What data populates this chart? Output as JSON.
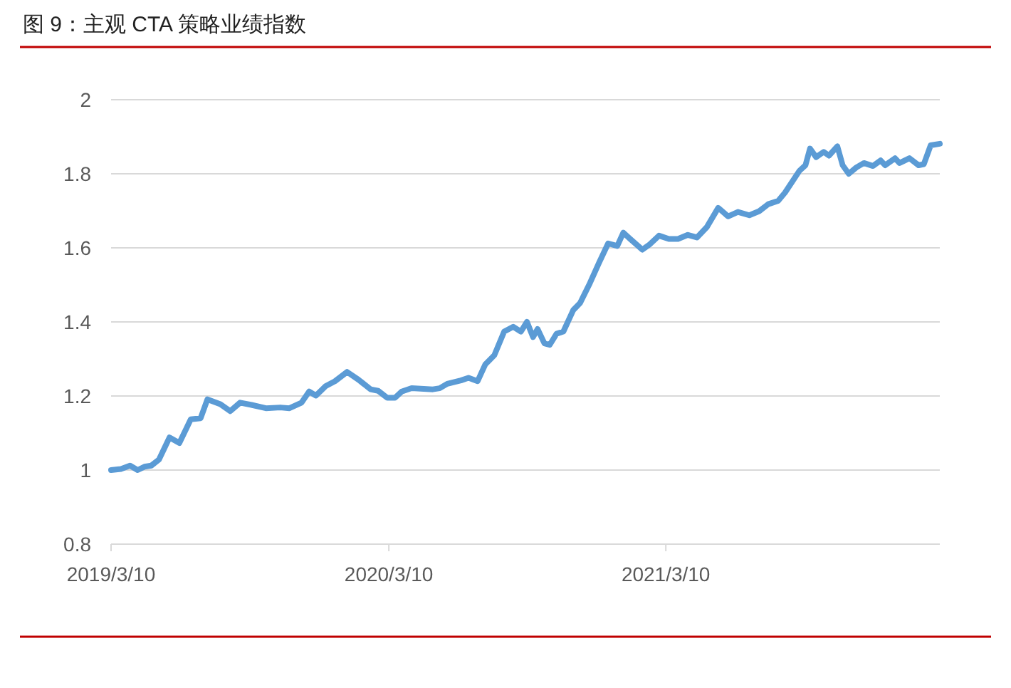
{
  "chart_data": {
    "type": "line",
    "title": "图 9：主观 CTA 策略业绩指数",
    "x": [
      "2019-03-10",
      "2019-03-23",
      "2019-04-04",
      "2019-04-14",
      "2019-04-23",
      "2019-05-02",
      "2019-05-12",
      "2019-05-26",
      "2019-06-08",
      "2019-06-23",
      "2019-07-06",
      "2019-07-15",
      "2019-08-01",
      "2019-08-14",
      "2019-08-27",
      "2019-09-11",
      "2019-09-30",
      "2019-10-19",
      "2019-10-31",
      "2019-11-16",
      "2019-11-26",
      "2019-12-05",
      "2019-12-18",
      "2019-12-30",
      "2020-01-15",
      "2020-01-30",
      "2020-02-15",
      "2020-02-25",
      "2020-03-08",
      "2020-03-18",
      "2020-03-27",
      "2020-04-09",
      "2020-05-07",
      "2020-05-16",
      "2020-05-26",
      "2020-06-13",
      "2020-06-23",
      "2020-07-05",
      "2020-07-15",
      "2020-07-27",
      "2020-08-09",
      "2020-08-21",
      "2020-08-31",
      "2020-09-08",
      "2020-09-16",
      "2020-09-22",
      "2020-10-01",
      "2020-10-08",
      "2020-10-17",
      "2020-10-26",
      "2020-11-08",
      "2020-11-17",
      "2020-11-30",
      "2020-12-12",
      "2020-12-24",
      "2021-01-05",
      "2021-01-13",
      "2021-01-22",
      "2021-02-07",
      "2021-02-16",
      "2021-03-01",
      "2021-03-14",
      "2021-03-26",
      "2021-04-08",
      "2021-04-20",
      "2021-05-03",
      "2021-05-18",
      "2021-05-31",
      "2021-06-13",
      "2021-06-28",
      "2021-07-11",
      "2021-07-23",
      "2021-08-05",
      "2021-08-14",
      "2021-09-02",
      "2021-09-10",
      "2021-09-16",
      "2021-09-24",
      "2021-10-04",
      "2021-10-11",
      "2021-10-22",
      "2021-10-29",
      "2021-11-06",
      "2021-11-16",
      "2021-11-26",
      "2021-12-08",
      "2021-12-18",
      "2021-12-24",
      "2022-01-06",
      "2022-01-12",
      "2022-01-25",
      "2022-02-06",
      "2022-02-13",
      "2022-02-22",
      "2022-03-06"
    ],
    "series": [
      {
        "color": "#5b9bd5",
        "values": [
          1.0,
          1.003,
          1.012,
          1.0,
          1.009,
          1.012,
          1.028,
          1.088,
          1.073,
          1.137,
          1.14,
          1.191,
          1.178,
          1.159,
          1.182,
          1.176,
          1.167,
          1.169,
          1.167,
          1.182,
          1.212,
          1.201,
          1.227,
          1.24,
          1.265,
          1.244,
          1.218,
          1.214,
          1.195,
          1.195,
          1.212,
          1.221,
          1.218,
          1.221,
          1.233,
          1.242,
          1.249,
          1.24,
          1.285,
          1.31,
          1.374,
          1.387,
          1.374,
          1.4,
          1.359,
          1.381,
          1.342,
          1.338,
          1.368,
          1.374,
          1.432,
          1.451,
          1.505,
          1.56,
          1.612,
          1.605,
          1.641,
          1.624,
          1.595,
          1.608,
          1.633,
          1.624,
          1.624,
          1.635,
          1.628,
          1.656,
          1.708,
          1.685,
          1.697,
          1.688,
          1.699,
          1.718,
          1.727,
          1.749,
          1.808,
          1.823,
          1.868,
          1.845,
          1.859,
          1.849,
          1.874,
          1.823,
          1.8,
          1.817,
          1.829,
          1.821,
          1.836,
          1.823,
          1.842,
          1.829,
          1.842,
          1.823,
          1.826,
          1.877,
          1.881
        ]
      }
    ],
    "xlim": [
      "2019-03-10",
      "2022-03-06"
    ],
    "xticks": [
      {
        "value": "2019-03-10",
        "label": "2019/3/10"
      },
      {
        "value": "2020-03-10",
        "label": "2020/3/10"
      },
      {
        "value": "2021-03-10",
        "label": "2021/3/10"
      }
    ],
    "ylim": [
      0.8,
      2
    ],
    "yticks": [
      0.8,
      1,
      1.2,
      1.4,
      1.6,
      1.8,
      2
    ],
    "grid": "y"
  }
}
